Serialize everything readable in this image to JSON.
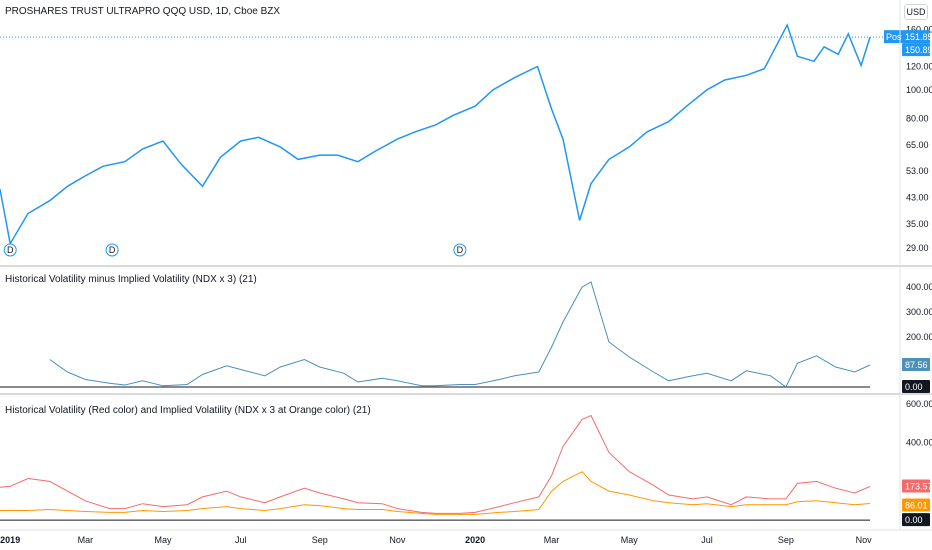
{
  "header": {
    "title": "PROSHARES TRUST ULTRAPRO QQQ USD, 1D, Cboe BZX",
    "currency": "USD"
  },
  "colors": {
    "price_line": "#2196f3",
    "hv_minus_iv": "#4a90b8",
    "hv": "#f46b6b",
    "iv": "#ff9800",
    "zero_line": "#131722",
    "post_tag": "#2196f3",
    "grid": "#e0e3eb"
  },
  "x_axis": {
    "labels": [
      {
        "label": "2019",
        "bold": true
      },
      {
        "label": "Mar",
        "bold": false
      },
      {
        "label": "May",
        "bold": false
      },
      {
        "label": "Jul",
        "bold": false
      },
      {
        "label": "Sep",
        "bold": false
      },
      {
        "label": "Nov",
        "bold": false
      },
      {
        "label": "2020",
        "bold": true
      },
      {
        "label": "Mar",
        "bold": false
      },
      {
        "label": "May",
        "bold": false
      },
      {
        "label": "Jul",
        "bold": false
      },
      {
        "label": "Sep",
        "bold": false
      },
      {
        "label": "Nov",
        "bold": false
      }
    ]
  },
  "chart_data": [
    {
      "type": "line",
      "title": "PROSHARES TRUST ULTRAPRO QQQ USD, 1D, Cboe BZX",
      "scale": "log",
      "ylim": [
        26,
        170
      ],
      "y_ticks": [
        "160.00",
        "120.00",
        "100.00",
        "80.00",
        "65.00",
        "53.00",
        "43.00",
        "35.00",
        "29.00"
      ],
      "y_tick_values": [
        160,
        120,
        100,
        80,
        65,
        53,
        43,
        35,
        29
      ],
      "x": [
        "2018-12-24",
        "2019-01-01",
        "2019-01-15",
        "2019-02-01",
        "2019-02-15",
        "2019-03-01",
        "2019-03-15",
        "2019-04-01",
        "2019-04-15",
        "2019-05-01",
        "2019-05-15",
        "2019-06-01",
        "2019-06-15",
        "2019-07-01",
        "2019-07-15",
        "2019-08-01",
        "2019-08-15",
        "2019-09-01",
        "2019-09-15",
        "2019-10-01",
        "2019-10-15",
        "2019-11-01",
        "2019-11-15",
        "2019-12-01",
        "2019-12-15",
        "2020-01-01",
        "2020-01-15",
        "2020-02-01",
        "2020-02-19",
        "2020-03-01",
        "2020-03-10",
        "2020-03-23",
        "2020-04-01",
        "2020-04-15",
        "2020-05-01",
        "2020-05-15",
        "2020-06-01",
        "2020-06-15",
        "2020-07-01",
        "2020-07-15",
        "2020-08-01",
        "2020-08-15",
        "2020-09-02",
        "2020-09-10",
        "2020-09-23",
        "2020-10-01",
        "2020-10-12",
        "2020-10-20",
        "2020-10-30",
        "2020-11-06"
      ],
      "values": [
        46,
        30,
        38,
        42,
        47,
        51,
        55,
        57,
        63,
        67,
        56,
        47,
        59,
        67,
        69,
        64,
        58,
        60,
        60,
        57,
        62,
        68,
        72,
        76,
        82,
        88,
        100,
        110,
        120,
        86,
        68,
        36,
        48,
        58,
        64,
        72,
        78,
        88,
        100,
        108,
        112,
        118,
        166,
        130,
        125,
        140,
        132,
        155,
        121,
        151
      ],
      "series_name": "",
      "markers": [
        {
          "x": "2019-01-01",
          "label": "D"
        },
        {
          "x": "2019-03-22",
          "label": "D"
        },
        {
          "x": "2019-12-20",
          "label": "D"
        }
      ],
      "last_price_tags": [
        {
          "label": "Post",
          "value": "151.85"
        },
        {
          "label": "",
          "value": "150.89"
        }
      ]
    },
    {
      "type": "line",
      "title": "Historical Volatility minus Implied Volatility (NDX x 3) (21)",
      "ylim": [
        -20,
        460
      ],
      "y_ticks": [
        "400.00",
        "300.00",
        "200.00"
      ],
      "y_tick_values": [
        400,
        300,
        200
      ],
      "x": [
        "2019-02-01",
        "2019-02-15",
        "2019-03-01",
        "2019-03-20",
        "2019-04-01",
        "2019-04-15",
        "2019-05-01",
        "2019-05-20",
        "2019-06-01",
        "2019-06-20",
        "2019-07-01",
        "2019-07-20",
        "2019-08-01",
        "2019-08-20",
        "2019-09-01",
        "2019-09-20",
        "2019-10-01",
        "2019-10-20",
        "2019-11-01",
        "2019-11-20",
        "2019-12-01",
        "2019-12-20",
        "2020-01-01",
        "2020-01-20",
        "2020-02-01",
        "2020-02-20",
        "2020-03-01",
        "2020-03-10",
        "2020-03-25",
        "2020-04-01",
        "2020-04-15",
        "2020-05-01",
        "2020-05-20",
        "2020-06-01",
        "2020-06-20",
        "2020-07-01",
        "2020-07-20",
        "2020-08-01",
        "2020-08-20",
        "2020-09-01",
        "2020-09-10",
        "2020-09-25",
        "2020-10-10",
        "2020-10-25",
        "2020-11-06"
      ],
      "values": [
        110,
        60,
        30,
        15,
        8,
        25,
        5,
        10,
        50,
        85,
        70,
        45,
        80,
        110,
        80,
        55,
        20,
        35,
        25,
        5,
        5,
        10,
        10,
        30,
        45,
        60,
        160,
        260,
        400,
        420,
        180,
        120,
        60,
        25,
        45,
        55,
        25,
        65,
        45,
        0,
        95,
        125,
        80,
        60,
        88
      ],
      "series_name": "",
      "last_value_tag": "87.56",
      "zero_tag": "0.00"
    },
    {
      "type": "line",
      "title": "Historical Volatility (Red color) and Implied Volatility (NDX x 3 at Orange color) (21)",
      "ylim": [
        -30,
        620
      ],
      "y_ticks": [
        "600.00",
        "400.00"
      ],
      "y_tick_values": [
        600,
        400
      ],
      "x": [
        "2018-12-24",
        "2019-01-01",
        "2019-01-15",
        "2019-02-01",
        "2019-02-15",
        "2019-03-01",
        "2019-03-20",
        "2019-04-01",
        "2019-04-15",
        "2019-05-01",
        "2019-05-20",
        "2019-06-01",
        "2019-06-20",
        "2019-07-01",
        "2019-07-20",
        "2019-08-01",
        "2019-08-20",
        "2019-09-01",
        "2019-09-20",
        "2019-10-01",
        "2019-10-20",
        "2019-11-01",
        "2019-11-20",
        "2019-12-01",
        "2019-12-20",
        "2020-01-01",
        "2020-01-20",
        "2020-02-01",
        "2020-02-20",
        "2020-03-01",
        "2020-03-10",
        "2020-03-25",
        "2020-04-01",
        "2020-04-15",
        "2020-05-01",
        "2020-05-20",
        "2020-06-01",
        "2020-06-20",
        "2020-07-01",
        "2020-07-20",
        "2020-08-01",
        "2020-08-20",
        "2020-09-01",
        "2020-09-10",
        "2020-09-25",
        "2020-10-10",
        "2020-10-25",
        "2020-11-06"
      ],
      "series": [
        {
          "name": "Historical Volatility",
          "values": [
            170,
            175,
            215,
            200,
            150,
            100,
            60,
            60,
            85,
            70,
            80,
            120,
            150,
            120,
            90,
            120,
            165,
            140,
            110,
            90,
            85,
            60,
            40,
            35,
            35,
            40,
            70,
            90,
            120,
            230,
            380,
            520,
            540,
            350,
            250,
            180,
            130,
            110,
            120,
            80,
            120,
            110,
            110,
            190,
            200,
            165,
            140,
            173.57
          ]
        },
        {
          "name": "Implied Volatility (NDX x 3)",
          "values": [
            50,
            50,
            50,
            55,
            50,
            45,
            40,
            40,
            50,
            45,
            50,
            60,
            70,
            60,
            50,
            60,
            80,
            75,
            60,
            55,
            55,
            45,
            35,
            30,
            30,
            30,
            40,
            45,
            55,
            150,
            200,
            250,
            200,
            150,
            130,
            100,
            90,
            80,
            85,
            70,
            80,
            80,
            80,
            95,
            100,
            90,
            80,
            86.01
          ]
        }
      ],
      "last_value_tags": [
        "173.57",
        "86.01"
      ],
      "zero_tag": "0.00"
    }
  ]
}
